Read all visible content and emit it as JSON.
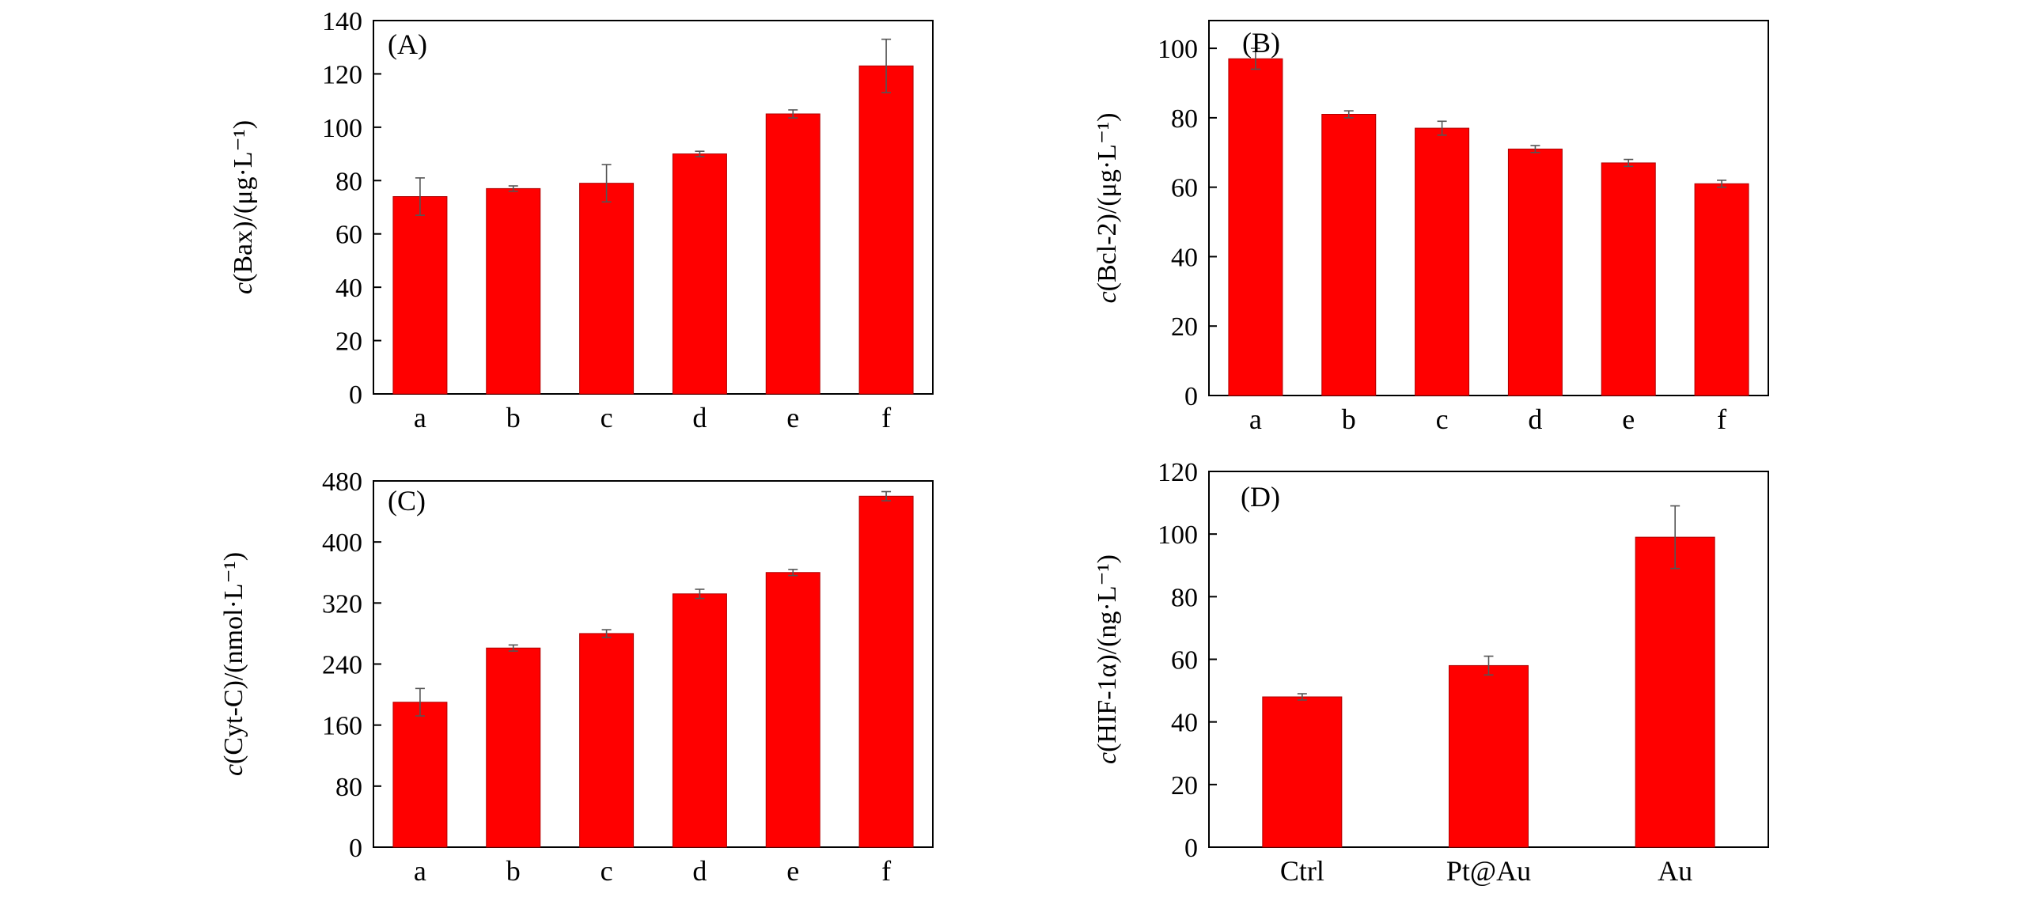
{
  "chart_data": [
    {
      "type": "bar",
      "panel_label": "(A)",
      "ylabel_var": "c",
      "ylabel_rest": "(Bax)/(μg·L⁻¹)",
      "categories": [
        "a",
        "b",
        "c",
        "d",
        "e",
        "f"
      ],
      "values": [
        74,
        77,
        79,
        90,
        105,
        123
      ],
      "errors": [
        7,
        1,
        7,
        1,
        1.5,
        10
      ],
      "ylim": [
        0,
        140
      ],
      "yticks": [
        "0",
        "20",
        "40",
        "60",
        "80",
        "100",
        "120",
        "140"
      ],
      "color": "#ff0000"
    },
    {
      "type": "bar",
      "panel_label": "(B)",
      "ylabel_var": "c",
      "ylabel_rest": "(Bcl-2)/(μg·L⁻¹)",
      "categories": [
        "a",
        "b",
        "c",
        "d",
        "e",
        "f"
      ],
      "values": [
        97,
        81,
        77,
        71,
        67,
        61
      ],
      "errors": [
        3,
        1,
        2,
        1,
        1,
        1
      ],
      "ylim": [
        0,
        108
      ],
      "yticks": [
        "0",
        "20",
        "40",
        "60",
        "80",
        "100"
      ],
      "color": "#ff0000"
    },
    {
      "type": "bar",
      "panel_label": "(C)",
      "ylabel_var": "c",
      "ylabel_rest": "(Cyt-C)/(nmol·L⁻¹)",
      "categories": [
        "a",
        "b",
        "c",
        "d",
        "e",
        "f"
      ],
      "values": [
        190,
        261,
        280,
        332,
        360,
        460
      ],
      "errors": [
        18,
        4,
        5,
        6,
        4,
        6
      ],
      "ylim": [
        0,
        480
      ],
      "yticks": [
        "0",
        "80",
        "160",
        "240",
        "320",
        "400",
        "480"
      ],
      "color": "#ff0000"
    },
    {
      "type": "bar",
      "panel_label": "(D)",
      "ylabel_var": "c",
      "ylabel_rest": "(HIF-1α)/(ng·L⁻¹)",
      "categories": [
        "Ctrl",
        "Pt@Au",
        "Au"
      ],
      "values": [
        48,
        58,
        99
      ],
      "errors": [
        1,
        3,
        10
      ],
      "ylim": [
        0,
        120
      ],
      "yticks": [
        "0",
        "20",
        "40",
        "60",
        "80",
        "100",
        "120"
      ],
      "color": "#ff0000"
    }
  ]
}
